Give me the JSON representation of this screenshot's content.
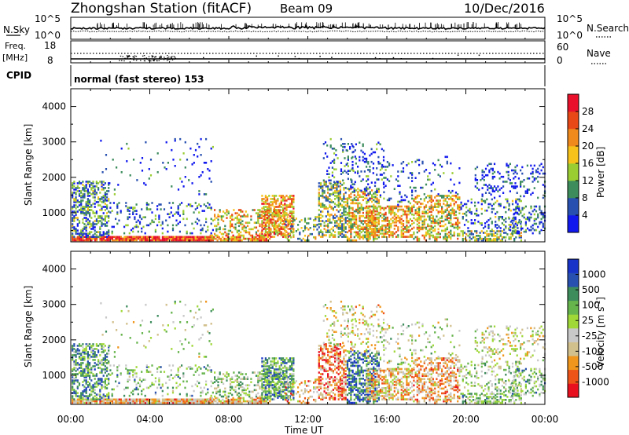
{
  "header": {
    "station": "Zhongshan Station (fitACF)",
    "beam": "Beam 09",
    "date": "10/Dec/2016"
  },
  "top_panel": {
    "left_label": "N.Sky",
    "left_ticks": [
      "10^5",
      "10^0"
    ],
    "right_label": "N.Search",
    "right_ticks": [
      "10^5",
      "10^0"
    ]
  },
  "freq_panel": {
    "left_label_1": "Freq.",
    "left_label_2": "[MHz]",
    "left_ticks": [
      "18",
      "8"
    ],
    "right_label": "Nave",
    "right_ticks": [
      "60",
      "0"
    ]
  },
  "cpid": {
    "label": "CPID",
    "text": "normal (fast stereo) 153"
  },
  "colors": {
    "power_scale": [
      "#1018ee",
      "#2850b0",
      "#3c8c5c",
      "#9acd32",
      "#f7c21a",
      "#f08a1c",
      "#e84816",
      "#e8102a"
    ],
    "velocity_scale": [
      "#e8101e",
      "#ee5418",
      "#f0961c",
      "#d2c08c",
      "#c8c8c8",
      "#a0d838",
      "#66b44c",
      "#3c8c5c",
      "#2850b0",
      "#1834c8"
    ]
  },
  "chart_data": [
    {
      "type": "heatmap",
      "title": "Power",
      "ylabel": "Slant Range [km]",
      "y_ticks": [
        "4000",
        "3000",
        "2000",
        "1000"
      ],
      "ylim": [
        180,
        4500
      ],
      "x_ticks": [
        "00:00",
        "04:00",
        "08:00",
        "12:00",
        "16:00",
        "20:00",
        "00:00"
      ],
      "colorbar": {
        "label": "Power [dB]",
        "ticks": [
          "28",
          "24",
          "20",
          "16",
          "12",
          "8",
          "4"
        ],
        "range": [
          0,
          32
        ]
      }
    },
    {
      "type": "heatmap",
      "title": "Velocity",
      "ylabel": "Slant Range [km]",
      "y_ticks": [
        "4000",
        "3000",
        "2000",
        "1000"
      ],
      "ylim": [
        180,
        4500
      ],
      "x_ticks": [
        "00:00",
        "04:00",
        "08:00",
        "12:00",
        "16:00",
        "20:00",
        "00:00"
      ],
      "xlabel": "Time UT",
      "colorbar": {
        "label": "Velocity [m s",
        "label_sup": "-1",
        "label_end": "]",
        "ticks": [
          "1000",
          "500",
          "100",
          "25",
          "-25",
          "-100",
          "-500",
          "-1000"
        ]
      }
    }
  ]
}
